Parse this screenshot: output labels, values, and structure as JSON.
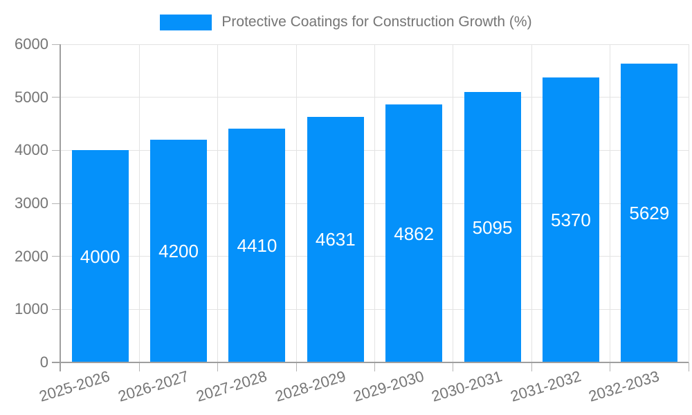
{
  "chart_data": {
    "type": "bar",
    "title": "Protective Coatings for Construction Growth (%)",
    "categories": [
      "2025-2026",
      "2026-2027",
      "2027-2028",
      "2028-2029",
      "2029-2030",
      "2030-2031",
      "2031-2032",
      "2032-2033"
    ],
    "values": [
      4000,
      4200,
      4410,
      4631,
      4862,
      5095,
      5370,
      5629
    ],
    "xlabel": "",
    "ylabel": "",
    "ylim": [
      0,
      6000
    ],
    "yticks": [
      0,
      1000,
      2000,
      3000,
      4000,
      5000,
      6000
    ],
    "grid": true,
    "legend_position": "top-center",
    "bar_value_labels": "inside-center",
    "colors": {
      "bar": "#0591fa",
      "annotation_text": "#ffffff",
      "axis_text": "#757575",
      "gridline": "#e3e3e3",
      "axis_line": "#9e9e9e",
      "tick": "#b3b3b3",
      "background": "#ffffff"
    }
  }
}
